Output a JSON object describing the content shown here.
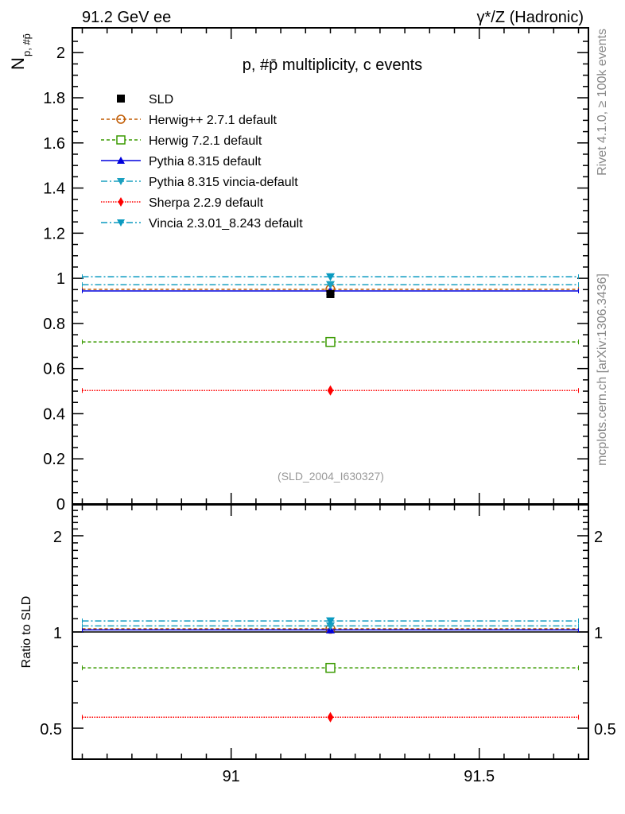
{
  "chart_data": {
    "type": "scatter",
    "header_left": "91.2 GeV ee",
    "header_right": "γ*/Z (Hadronic)",
    "title": "p, #p̄ multiplicity, c events",
    "ylabel": "N",
    "ylabel_sub": "p, #p̄",
    "ratio_ylabel": "Ratio to SLD",
    "analysis_tag": "(SLD_2004_I630327)",
    "side_text_top": "Rivet 4.1.0, ≥ 100k events",
    "side_text_bottom": "mcplots.cern.ch [arXiv:1306.3436]",
    "xlim": [
      90.68,
      91.72
    ],
    "ylim": [
      0,
      2.11
    ],
    "ratio_ylim": [
      0.4,
      2.5
    ],
    "ratio_scale": "log",
    "x_ticks": [
      "91",
      "91.5"
    ],
    "x_tick_values": [
      91,
      91.5
    ],
    "y_ticks": [
      "0",
      "0.2",
      "0.4",
      "0.6",
      "0.8",
      "1",
      "1.2",
      "1.4",
      "1.6",
      "1.8",
      "2"
    ],
    "y_tick_values": [
      0,
      0.2,
      0.4,
      0.6,
      0.8,
      1,
      1.2,
      1.4,
      1.6,
      1.8,
      2
    ],
    "ratio_ticks": [
      "0.5",
      "1",
      "2"
    ],
    "ratio_tick_values": [
      0.5,
      1,
      2
    ],
    "bin": [
      90.7,
      91.7
    ],
    "x_point": 91.2,
    "legend_position": "top-left",
    "series": [
      {
        "name": "SLD",
        "value": 0.93,
        "ratio": 1.0,
        "color": "#000000",
        "marker": "square-filled",
        "dash": "none",
        "is_data": true
      },
      {
        "name": "Herwig++ 2.7.1 default",
        "value": 0.951,
        "ratio": 1.023,
        "color": "#c05a00",
        "marker": "circle-open",
        "dash": "4,3"
      },
      {
        "name": "Herwig 7.2.1 default",
        "value": 0.718,
        "ratio": 0.772,
        "color": "#3a9a00",
        "marker": "square-open",
        "dash": "4,3"
      },
      {
        "name": "Pythia 8.315 default",
        "value": 0.944,
        "ratio": 1.015,
        "color": "#0000dd",
        "marker": "triangle-up",
        "dash": ""
      },
      {
        "name": "Pythia 8.315 vincia-default",
        "value": 0.972,
        "ratio": 1.045,
        "color": "#1aa0c0",
        "marker": "triangle-down",
        "dash": "8,3,2,3"
      },
      {
        "name": "Sherpa 2.2.9 default",
        "value": 0.503,
        "ratio": 0.541,
        "color": "#ff0000",
        "marker": "diamond",
        "dash": "1.5,1.5"
      },
      {
        "name": "Vincia 2.3.01_8.243 default",
        "value": 1.007,
        "ratio": 1.083,
        "color": "#0a9ac0",
        "marker": "triangle-down",
        "dash": "8,3,2,3"
      }
    ]
  }
}
